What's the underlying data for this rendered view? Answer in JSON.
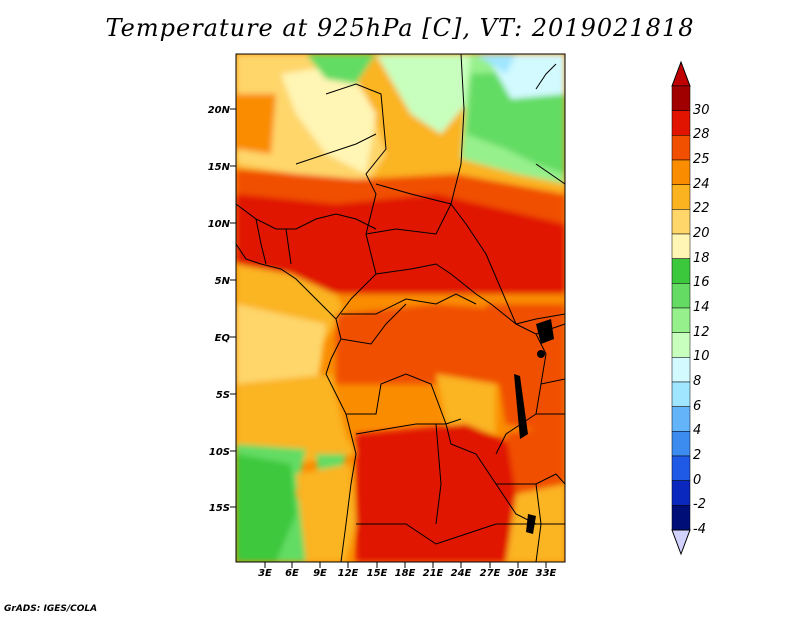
{
  "title": "Temperature at 925hPa [C], VT: 2019021818",
  "credit": "GrADS: IGES/COLA",
  "lat_labels": [
    "20N",
    "15N",
    "10N",
    "5N",
    "EQ",
    "5S",
    "10S",
    "15S"
  ],
  "lon_labels": [
    "3E",
    "6E",
    "9E",
    "12E",
    "15E",
    "18E",
    "21E",
    "24E",
    "27E",
    "30E",
    "33E"
  ],
  "colorbar": {
    "labels": [
      "30",
      "28",
      "25",
      "24",
      "22",
      "20",
      "18",
      "16",
      "14",
      "12",
      "10",
      "8",
      "6",
      "4",
      "2",
      "0",
      "-2",
      "-4"
    ],
    "colors": [
      "#a00000",
      "#e01400",
      "#f05000",
      "#fa8c00",
      "#fbb420",
      "#fed66a",
      "#fff5b4",
      "#3cc83c",
      "#64dc64",
      "#96f08c",
      "#c8ffbe",
      "#d2faff",
      "#a0e6ff",
      "#64b4fa",
      "#3c8cf0",
      "#1e5ae6",
      "#0a28be",
      "#000f78"
    ],
    "top_arrow_color": "#c00000",
    "bottom_arrow_color": "#d2d2ff"
  }
}
